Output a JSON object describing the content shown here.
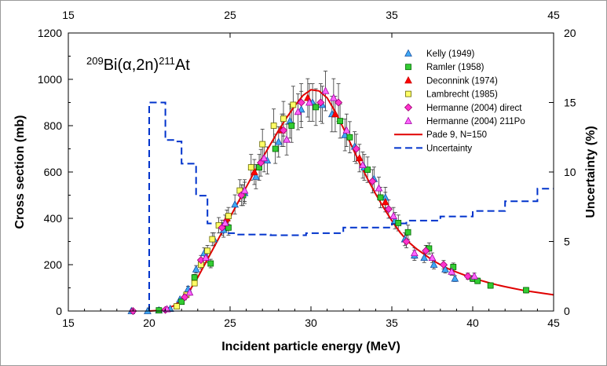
{
  "chart_data": {
    "type": "scatter",
    "title_parts": {
      "mass_target": "209",
      "target": "Bi(",
      "alpha": "α",
      "channel": ",2n)",
      "mass_product": "211",
      "product": "At"
    },
    "xlabel": "Incident particle energy (MeV)",
    "ylabel": "Cross section (mb)",
    "ylabel_right": "Uncertainty (%)",
    "xlim": [
      15,
      45
    ],
    "ylim": [
      0,
      1200
    ],
    "ylim_right": [
      0,
      20
    ],
    "x_ticks": [
      "15",
      "20",
      "25",
      "30",
      "35",
      "40",
      "45"
    ],
    "x_ticks_top": [
      "15",
      "25",
      "35",
      "45"
    ],
    "y_ticks": [
      "0",
      "200",
      "400",
      "600",
      "800",
      "1000",
      "1200"
    ],
    "y_ticks_right": [
      "0",
      "5",
      "10",
      "15",
      "20"
    ],
    "series": [
      {
        "name": "Kelly (1949)",
        "marker": "triangle",
        "color": "#3fa9f5",
        "stroke": "#1a4fa0",
        "points": [
          [
            18.9,
            0
          ],
          [
            19.9,
            0
          ],
          [
            20.6,
            3
          ],
          [
            21.3,
            10
          ],
          [
            21.9,
            50
          ],
          [
            22.4,
            95
          ],
          [
            22.9,
            180
          ],
          [
            23.4,
            250
          ],
          [
            24.0,
            310
          ],
          [
            24.6,
            350
          ],
          [
            25.3,
            460
          ],
          [
            25.9,
            510
          ],
          [
            26.6,
            580
          ],
          [
            27.3,
            650
          ],
          [
            28.0,
            730
          ],
          [
            28.7,
            820
          ],
          [
            29.4,
            870
          ],
          [
            30.1,
            900
          ],
          [
            30.7,
            890
          ],
          [
            31.3,
            850
          ],
          [
            32.1,
            760
          ],
          [
            32.7,
            710
          ],
          [
            33.3,
            620
          ],
          [
            33.9,
            570
          ],
          [
            34.6,
            490
          ],
          [
            35.2,
            390
          ],
          [
            35.8,
            310
          ],
          [
            36.4,
            240
          ],
          [
            37.0,
            230
          ],
          [
            37.6,
            200
          ],
          [
            38.3,
            180
          ],
          [
            38.9,
            140
          ]
        ]
      },
      {
        "name": "Ramler (1958)",
        "marker": "square",
        "color": "#33cc33",
        "stroke": "#006600",
        "points": [
          [
            20.6,
            3
          ],
          [
            22.0,
            40
          ],
          [
            22.8,
            145
          ],
          [
            23.8,
            205
          ],
          [
            24.9,
            360
          ],
          [
            25.8,
            500
          ],
          [
            26.8,
            620
          ],
          [
            27.8,
            700
          ],
          [
            28.8,
            800
          ],
          [
            30.3,
            880
          ],
          [
            31.8,
            820
          ],
          [
            32.4,
            750
          ],
          [
            33.5,
            610
          ],
          [
            34.3,
            490
          ],
          [
            35.4,
            380
          ],
          [
            36.0,
            340
          ],
          [
            37.3,
            270
          ],
          [
            38.8,
            190
          ],
          [
            40.0,
            140
          ],
          [
            40.3,
            130
          ],
          [
            41.1,
            110
          ],
          [
            43.3,
            90
          ]
        ]
      },
      {
        "name": "Deconnink  (1974)",
        "marker": "triangle",
        "color": "#ff0000",
        "stroke": "#cc0000",
        "points": [
          [
            24.8,
            400
          ],
          [
            26.5,
            600
          ],
          [
            28.2,
            780
          ],
          [
            29.8,
            920
          ],
          [
            31.5,
            850
          ],
          [
            33.0,
            660
          ],
          [
            34.6,
            470
          ]
        ]
      },
      {
        "name": "Lambrecht (1985)",
        "marker": "square",
        "color": "#ffff66",
        "stroke": "#666600",
        "points": [
          [
            21.7,
            20
          ],
          [
            22.3,
            70
          ],
          [
            22.8,
            120
          ],
          [
            23.2,
            200
          ],
          [
            23.6,
            260
          ],
          [
            23.9,
            310
          ],
          [
            24.3,
            370
          ],
          [
            24.9,
            410
          ],
          [
            25.6,
            520
          ],
          [
            26.3,
            620
          ],
          [
            27.0,
            720
          ],
          [
            27.7,
            800
          ],
          [
            28.3,
            830
          ],
          [
            28.9,
            890
          ]
        ]
      },
      {
        "name": "Hermanne (2004) direct",
        "marker": "diamond",
        "color": "#ff33cc",
        "stroke": "#99006f",
        "points": [
          [
            19.0,
            0
          ],
          [
            21.0,
            5
          ],
          [
            22.2,
            60
          ],
          [
            23.2,
            220
          ],
          [
            24.5,
            360
          ],
          [
            25.7,
            500
          ],
          [
            26.9,
            640
          ],
          [
            28.3,
            780
          ],
          [
            29.4,
            900
          ],
          [
            30.6,
            900
          ],
          [
            31.7,
            900
          ],
          [
            32.8,
            700
          ],
          [
            33.8,
            560
          ],
          [
            34.8,
            440
          ],
          [
            35.9,
            300
          ],
          [
            37.1,
            260
          ],
          [
            38.2,
            200
          ],
          [
            39.7,
            150
          ]
        ]
      },
      {
        "name": "Hermanne (2004)  211Po",
        "marker": "triangle",
        "color": "#ff66ff",
        "stroke": "#a000a0",
        "points": [
          [
            21.1,
            8
          ],
          [
            22.5,
            80
          ],
          [
            23.5,
            230
          ],
          [
            24.7,
            380
          ],
          [
            25.9,
            520
          ],
          [
            27.1,
            660
          ],
          [
            28.5,
            740
          ],
          [
            29.2,
            860
          ],
          [
            29.9,
            900
          ],
          [
            30.9,
            950
          ],
          [
            31.4,
            920
          ],
          [
            32.2,
            780
          ],
          [
            33.2,
            630
          ],
          [
            34.2,
            530
          ],
          [
            35.1,
            410
          ],
          [
            36.4,
            250
          ],
          [
            37.5,
            230
          ],
          [
            38.7,
            170
          ],
          [
            40.1,
            150
          ]
        ]
      },
      {
        "name": "Pade 9, N=150",
        "type": "line",
        "color": "#e00000",
        "points": [
          [
            20,
            0
          ],
          [
            20.5,
            2
          ],
          [
            21,
            8
          ],
          [
            21.5,
            22
          ],
          [
            22,
            48
          ],
          [
            22.5,
            88
          ],
          [
            23,
            145
          ],
          [
            23.5,
            210
          ],
          [
            24,
            275
          ],
          [
            24.5,
            340
          ],
          [
            25,
            405
          ],
          [
            25.5,
            470
          ],
          [
            26,
            535
          ],
          [
            26.5,
            600
          ],
          [
            27,
            660
          ],
          [
            27.5,
            720
          ],
          [
            28,
            780
          ],
          [
            28.5,
            835
          ],
          [
            29,
            885
          ],
          [
            29.5,
            930
          ],
          [
            30,
            955
          ],
          [
            30.5,
            950
          ],
          [
            31,
            920
          ],
          [
            31.5,
            860
          ],
          [
            32,
            790
          ],
          [
            32.5,
            715
          ],
          [
            33,
            640
          ],
          [
            33.5,
            570
          ],
          [
            34,
            505
          ],
          [
            34.5,
            445
          ],
          [
            35,
            390
          ],
          [
            35.5,
            340
          ],
          [
            36,
            300
          ],
          [
            36.5,
            270
          ],
          [
            37,
            245
          ],
          [
            37.5,
            220
          ],
          [
            38,
            200
          ],
          [
            38.5,
            182
          ],
          [
            39,
            168
          ],
          [
            39.5,
            155
          ],
          [
            40,
            143
          ],
          [
            40.5,
            132
          ],
          [
            41,
            122
          ],
          [
            41.5,
            113
          ],
          [
            42,
            105
          ],
          [
            42.5,
            98
          ],
          [
            43,
            91
          ],
          [
            43.5,
            85
          ],
          [
            44,
            80
          ],
          [
            44.5,
            75
          ],
          [
            45,
            70
          ]
        ]
      },
      {
        "name": "Uncertainty",
        "type": "step",
        "axis": "right",
        "color": "#0033cc",
        "steps": [
          [
            20,
            0
          ],
          [
            20,
            15
          ],
          [
            21,
            15
          ],
          [
            21,
            12.3
          ],
          [
            21.6,
            12.3
          ],
          [
            21.6,
            12.2
          ],
          [
            22,
            12.2
          ],
          [
            22,
            10.6
          ],
          [
            22.9,
            10.6
          ],
          [
            22.9,
            8.3
          ],
          [
            23.6,
            8.3
          ],
          [
            23.6,
            6.3
          ],
          [
            24.6,
            6.3
          ],
          [
            24.6,
            5.6
          ],
          [
            25.5,
            5.6
          ],
          [
            25.5,
            5.5
          ],
          [
            27.5,
            5.5
          ],
          [
            27.5,
            5.45
          ],
          [
            29.7,
            5.45
          ],
          [
            29.7,
            5.6
          ],
          [
            32.0,
            5.6
          ],
          [
            32.0,
            6.0
          ],
          [
            35.0,
            6.0
          ],
          [
            35.0,
            6.3
          ],
          [
            35.9,
            6.3
          ],
          [
            35.9,
            6.5
          ],
          [
            38.0,
            6.5
          ],
          [
            38.0,
            6.8
          ],
          [
            40.0,
            6.8
          ],
          [
            40.0,
            7.2
          ],
          [
            42.0,
            7.2
          ],
          [
            42.0,
            7.9
          ],
          [
            44.0,
            7.9
          ],
          [
            44.0,
            8.8
          ],
          [
            45.0,
            8.8
          ]
        ]
      }
    ]
  }
}
